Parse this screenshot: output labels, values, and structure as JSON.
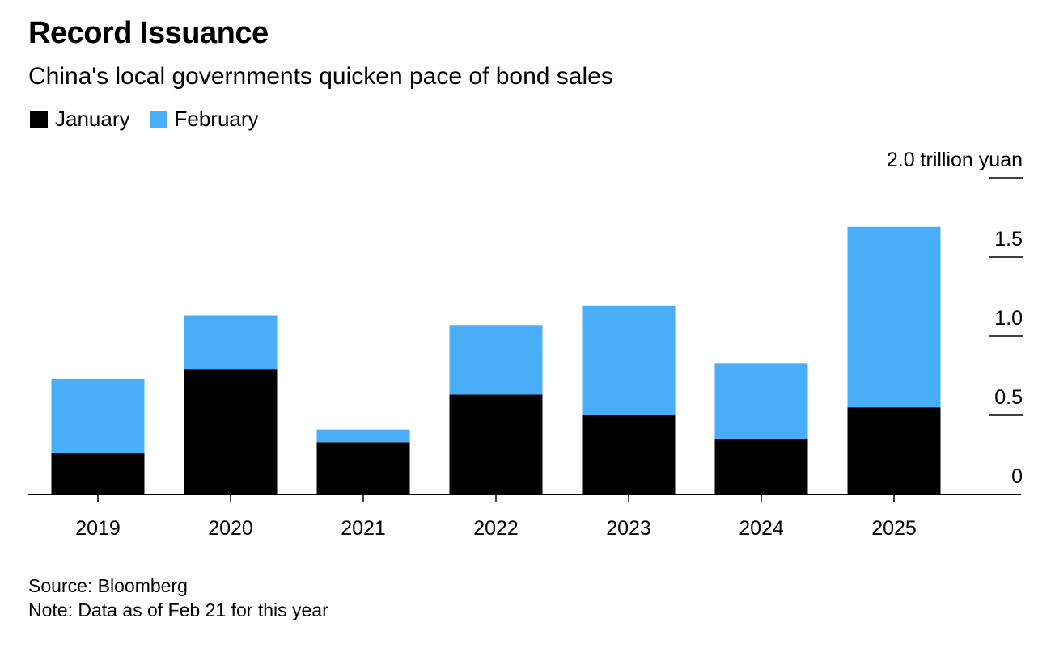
{
  "title": "Record Issuance",
  "subtitle": "China's local governments quicken pace of bond sales",
  "source": "Source: Bloomberg",
  "note": "Note: Data as of Feb 21 for this year",
  "colors": {
    "January": "#000000",
    "February": "#4aadf7"
  },
  "chart_data": {
    "type": "bar",
    "stacked": true,
    "categories": [
      "2019",
      "2020",
      "2021",
      "2022",
      "2023",
      "2024",
      "2025"
    ],
    "series": [
      {
        "name": "January",
        "values": [
          0.26,
          0.79,
          0.33,
          0.63,
          0.5,
          0.35,
          0.55
        ]
      },
      {
        "name": "February",
        "values": [
          0.47,
          0.34,
          0.08,
          0.44,
          0.69,
          0.48,
          1.14
        ]
      }
    ],
    "ylim": [
      0,
      2.0
    ],
    "yticks": [
      0,
      0.5,
      1.0,
      1.5,
      2.0
    ],
    "ytick_labels": [
      "0",
      "0.5",
      "1.0",
      "1.5",
      "2.0 trillion yuan"
    ],
    "y_axis_position": "right",
    "legend_position": "top-left"
  }
}
